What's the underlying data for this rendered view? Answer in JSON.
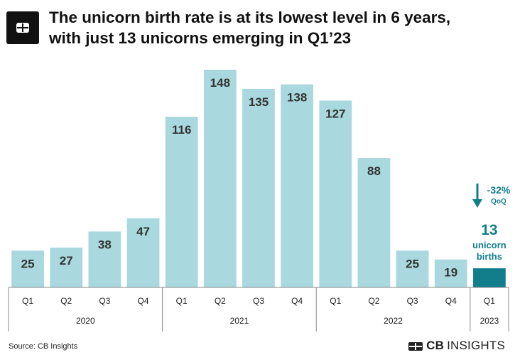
{
  "header": {
    "title_line1": "The unicorn birth rate is at its lowest level in 6 years,",
    "title_line2": "with just 13 unicorns emerging in Q1’23",
    "logo_icon": "cb-insights-logo-icon"
  },
  "chart_data": {
    "type": "bar",
    "title": "The unicorn birth rate is at its lowest level in 6 years, with just 13 unicorns emerging in Q1’23",
    "categories": [
      "Q1",
      "Q2",
      "Q3",
      "Q4",
      "Q1",
      "Q2",
      "Q3",
      "Q4",
      "Q1",
      "Q2",
      "Q3",
      "Q4",
      "Q1"
    ],
    "years": [
      {
        "label": "2020",
        "count": 4
      },
      {
        "label": "2021",
        "count": 4
      },
      {
        "label": "2022",
        "count": 4
      },
      {
        "label": "2023",
        "count": 1
      }
    ],
    "values": [
      25,
      27,
      38,
      47,
      116,
      148,
      135,
      138,
      127,
      88,
      25,
      19,
      13
    ],
    "ylim": [
      0,
      148
    ],
    "grid": false,
    "colors": {
      "bar": "#a9d8de",
      "highlight": "#127e8c",
      "label": "#333333",
      "accent": "#127e8c"
    },
    "annotation": {
      "change": "-32%",
      "change_unit": "QoQ",
      "count": "13",
      "line1": "unicorn",
      "line2": "births",
      "arrow_icon": "down-arrow-icon"
    }
  },
  "footer": {
    "source": "Source: CB Insights",
    "brand_bold": "CB",
    "brand_thin": "INSIGHTS",
    "brand_icon": "cb-insights-logo-icon"
  }
}
